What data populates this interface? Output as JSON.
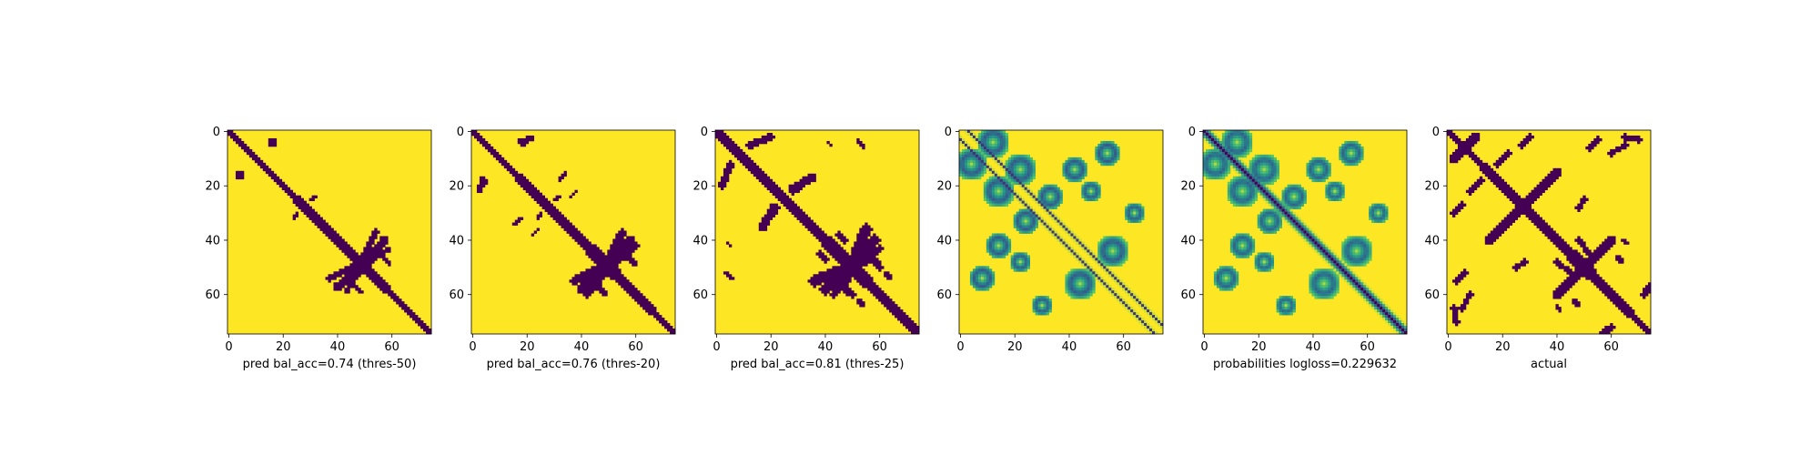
{
  "chart_data": [
    {
      "type": "heatmap",
      "xlabel": "pred bal_acc=0.74 (thres-50)",
      "size": 75,
      "xticks": [
        0,
        20,
        40,
        60
      ],
      "yticks": [
        0,
        20,
        40,
        60
      ],
      "colormap": "viridis",
      "colors": {
        "low": "#440154",
        "high": "#fde725"
      },
      "cells": {
        "diagonal_halfwidth": [
          [
            0,
            1.4
          ],
          [
            25,
            2.0
          ],
          [
            40,
            2.6
          ],
          [
            50,
            3.2
          ],
          [
            58,
            2.0
          ],
          [
            75,
            1.6
          ]
        ],
        "segments": [
          {
            "from": [
              37,
              54
            ],
            "to": [
              54,
              46
            ],
            "w": 1.2
          },
          {
            "from": [
              50,
              50
            ],
            "to": [
              57,
              40
            ],
            "w": 1.6
          },
          {
            "from": [
              55,
              46
            ],
            "to": [
              59,
              43
            ],
            "w": 0.9
          },
          {
            "from": [
              46,
              57
            ],
            "to": [
              49,
              59
            ],
            "w": 0.8
          },
          {
            "from": [
              15,
              5
            ],
            "to": [
              17,
              3
            ],
            "w": 0.8
          },
          {
            "from": [
              3,
              15
            ],
            "to": [
              5,
              17
            ],
            "w": 0.7
          },
          {
            "from": [
              30,
              25
            ],
            "to": [
              32,
              24
            ],
            "w": 0.7
          },
          {
            "from": [
              25,
              30
            ],
            "to": [
              24,
              32
            ],
            "w": 0.6
          }
        ]
      }
    },
    {
      "type": "heatmap",
      "xlabel": "pred bal_acc=0.76 (thres-20)",
      "size": 75,
      "xticks": [
        0,
        20,
        40,
        60
      ],
      "yticks": [
        0,
        20,
        40,
        60
      ],
      "colormap": "viridis",
      "colors": {
        "low": "#440154",
        "high": "#fde725"
      },
      "cells": {
        "diagonal_halfwidth": [
          [
            0,
            1.6
          ],
          [
            25,
            2.2
          ],
          [
            40,
            2.8
          ],
          [
            50,
            3.4
          ],
          [
            58,
            2.2
          ],
          [
            75,
            1.8
          ]
        ],
        "segments": [
          {
            "from": [
              37,
              55
            ],
            "to": [
              55,
              46
            ],
            "w": 1.4
          },
          {
            "from": [
              50,
              50
            ],
            "to": [
              58,
              40
            ],
            "w": 1.8
          },
          {
            "from": [
              56,
              46
            ],
            "to": [
              60,
              42
            ],
            "w": 1.0
          },
          {
            "from": [
              46,
              57
            ],
            "to": [
              49,
              60
            ],
            "w": 0.9
          },
          {
            "from": [
              18,
              4
            ],
            "to": [
              22,
              2
            ],
            "w": 0.9
          },
          {
            "from": [
              3,
              17
            ],
            "to": [
              5,
              19
            ],
            "w": 0.8
          },
          {
            "from": [
              32,
              18
            ],
            "to": [
              34,
              15
            ],
            "w": 0.8
          },
          {
            "from": [
              24,
              32
            ],
            "to": [
              25,
              30
            ],
            "w": 0.7
          },
          {
            "from": [
              36,
              24
            ],
            "to": [
              38,
              22
            ],
            "w": 0.7
          }
        ]
      }
    },
    {
      "type": "heatmap",
      "xlabel": "pred bal_acc=0.81 (thres-25)",
      "size": 75,
      "xticks": [
        0,
        20,
        40,
        60
      ],
      "yticks": [
        0,
        20,
        40,
        60
      ],
      "colormap": "viridis",
      "colors": {
        "low": "#440154",
        "high": "#fde725"
      },
      "cells": {
        "diagonal_halfwidth": [
          [
            0,
            2.0
          ],
          [
            25,
            2.6
          ],
          [
            40,
            3.0
          ],
          [
            50,
            4.0
          ],
          [
            58,
            2.6
          ],
          [
            75,
            2.0
          ]
        ],
        "segments": [
          {
            "from": [
              28,
              21
            ],
            "to": [
              35,
              17
            ],
            "w": 1.6
          },
          {
            "from": [
              22,
              28
            ],
            "to": [
              18,
              33
            ],
            "w": 1.4
          },
          {
            "from": [
              36,
              55
            ],
            "to": [
              55,
              47
            ],
            "w": 2.0
          },
          {
            "from": [
              50,
              50
            ],
            "to": [
              58,
              40
            ],
            "w": 2.0
          },
          {
            "from": [
              55,
              47
            ],
            "to": [
              60,
              43
            ],
            "w": 1.2
          },
          {
            "from": [
              46,
              57
            ],
            "to": [
              50,
              60
            ],
            "w": 1.2
          },
          {
            "from": [
              5,
              12
            ],
            "to": [
              2,
              20
            ],
            "w": 1.4
          },
          {
            "from": [
              12,
              5
            ],
            "to": [
              20,
              2
            ],
            "w": 1.4
          },
          {
            "from": [
              38,
              45
            ],
            "to": [
              40,
              47
            ],
            "w": 1.0
          },
          {
            "from": [
              52,
              62
            ],
            "to": [
              54,
              64
            ],
            "w": 0.8
          },
          {
            "from": [
              52,
              3
            ],
            "to": [
              54,
              6
            ],
            "w": 0.8
          },
          {
            "from": [
              4,
              41
            ],
            "to": [
              5,
              42
            ],
            "w": 0.6
          }
        ]
      }
    },
    {
      "type": "heatmap",
      "xlabel": "",
      "size": 75,
      "xticks": [
        0,
        20,
        40,
        60
      ],
      "yticks": [
        0,
        20,
        40,
        60
      ],
      "colormap": "viridis",
      "colors": {
        "low": "#440154",
        "high": "#fde725"
      }
    },
    {
      "type": "heatmap",
      "xlabel": "probabilities logloss=0.229632",
      "size": 75,
      "xticks": [
        0,
        20,
        40,
        60
      ],
      "yticks": [
        0,
        20,
        40,
        60
      ],
      "colormap": "viridis",
      "colors": {
        "low": "#440154",
        "high": "#fde725"
      }
    },
    {
      "type": "heatmap",
      "xlabel": "actual",
      "size": 75,
      "xticks": [
        0,
        20,
        40,
        60
      ],
      "yticks": [
        0,
        20,
        40,
        60
      ],
      "colormap": "viridis",
      "colors": {
        "low": "#440154",
        "high": "#fde725"
      },
      "cells": {
        "diagonal_halfwidth": [
          [
            0,
            1.6
          ],
          [
            25,
            2.4
          ],
          [
            40,
            2.6
          ],
          [
            50,
            3.4
          ],
          [
            60,
            2.2
          ],
          [
            75,
            1.8
          ]
        ],
        "segments": [
          {
            "from": [
              2,
              10
            ],
            "to": [
              10,
              2
            ],
            "w": 1.6
          },
          {
            "from": [
              15,
              40
            ],
            "to": [
              40,
              15
            ],
            "w": 1.8
          },
          {
            "from": [
              40,
              60
            ],
            "to": [
              60,
              40
            ],
            "w": 1.8
          },
          {
            "from": [
              8,
              22
            ],
            "to": [
              12,
              18
            ],
            "w": 1.0
          },
          {
            "from": [
              2,
              30
            ],
            "to": [
              5,
              27
            ],
            "w": 1.2
          },
          {
            "from": [
              40,
              48
            ],
            "to": [
              45,
              52
            ],
            "w": 1.0
          },
          {
            "from": [
              3,
              55
            ],
            "to": [
              6,
              52
            ],
            "w": 1.2
          },
          {
            "from": [
              60,
              8
            ],
            "to": [
              65,
              5
            ],
            "w": 1.0
          },
          {
            "from": [
              72,
              60
            ],
            "to": [
              74,
              57
            ],
            "w": 1.2
          },
          {
            "from": [
              2,
              65
            ],
            "to": [
              3,
              70
            ],
            "w": 1.0
          },
          {
            "from": [
              25,
              50
            ],
            "to": [
              28,
              48
            ],
            "w": 1.0
          },
          {
            "from": [
              46,
              62
            ],
            "to": [
              48,
              64
            ],
            "w": 0.8
          },
          {
            "from": [
              64,
              40
            ],
            "to": [
              66,
              41
            ],
            "w": 0.8
          }
        ]
      }
    }
  ]
}
